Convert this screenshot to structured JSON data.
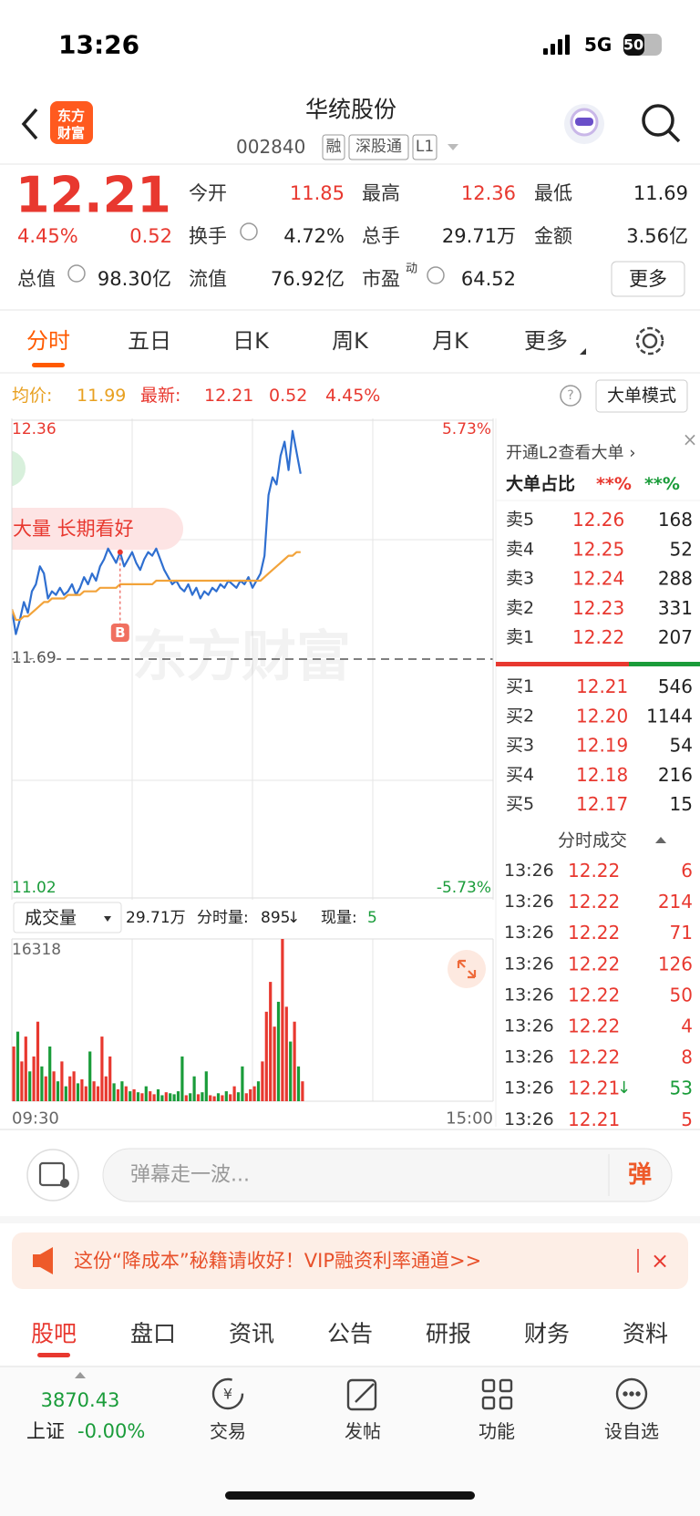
{
  "status": {
    "time": "13:26",
    "network": "5G",
    "battery": "50"
  },
  "header": {
    "logo": [
      "东方",
      "财富"
    ],
    "title": "华统股份",
    "code": "002840",
    "tags": [
      "融",
      "深股通",
      "L1"
    ]
  },
  "quote": {
    "price": "12.21",
    "change_pct": "4.45%",
    "change": "0.52",
    "stats": [
      [
        {
          "label": "今开",
          "value": "11.85",
          "color": "#e8382f"
        },
        {
          "label": "最高",
          "value": "12.36",
          "color": "#e8382f"
        },
        {
          "label": "最低",
          "value": "11.69",
          "color": "#222222"
        }
      ],
      [
        {
          "label": "换手",
          "value": "4.72%",
          "color": "#222222"
        },
        {
          "label": "总手",
          "value": "29.71万",
          "color": "#222222"
        },
        {
          "label": "金额",
          "value": "3.56亿",
          "color": "#222222"
        }
      ],
      [
        {
          "label": "总值",
          "value": "98.30亿",
          "color": "#222222"
        },
        {
          "label": "流值",
          "value": "76.92亿",
          "color": "#222222"
        },
        {
          "label": "市盈",
          "sup": "动",
          "value": "64.52",
          "color": "#222222"
        }
      ]
    ],
    "more": "更多"
  },
  "tabs": {
    "items": [
      "分时",
      "五日",
      "日K",
      "周K",
      "月K",
      "更多"
    ],
    "active": 0
  },
  "chart_info": {
    "avg_label": "均价:",
    "avg": "11.99",
    "latest_label": "最新:",
    "latest": "12.21",
    "change": "0.52",
    "change_pct": "4.45%",
    "mode": "大单模式"
  },
  "chart_data": [
    {
      "type": "line",
      "xlim": [
        0,
        120
      ],
      "ylim": [
        11.02,
        12.36
      ],
      "yticks": [
        11.02,
        12.36
      ],
      "y2lim": [
        -5.73,
        5.73
      ],
      "y2ticks": [
        {
          "value": -5.73,
          "label": "-5.73%"
        },
        {
          "value": 5.73,
          "label": "5.73%"
        }
      ],
      "reference": 11.69,
      "banner": "放大量 长期看好",
      "marker": {
        "label": "B",
        "x": 27
      },
      "watermark": "东方财富",
      "series": [
        {
          "color": "#2f6fd0",
          "values": [
            11.83,
            11.76,
            11.8,
            11.85,
            11.82,
            11.88,
            11.9,
            11.95,
            11.93,
            11.86,
            11.88,
            11.87,
            11.89,
            11.87,
            11.88,
            11.9,
            11.87,
            11.89,
            11.92,
            11.9,
            11.93,
            11.91,
            11.95,
            11.97,
            12.0,
            11.98,
            11.96,
            11.99,
            11.95,
            11.97,
            11.99,
            11.96,
            11.94,
            11.97,
            11.99,
            11.98,
            12.0,
            11.97,
            11.94,
            11.92,
            11.9,
            11.91,
            11.89,
            11.88,
            11.9,
            11.87,
            11.89,
            11.86,
            11.88,
            11.87,
            11.89,
            11.88,
            11.9,
            11.89,
            11.91,
            11.9,
            11.89,
            11.91,
            11.9,
            11.92,
            11.89,
            11.91,
            11.93,
            11.98,
            12.15,
            12.2,
            12.18,
            12.26,
            12.3,
            12.22,
            12.33,
            12.27,
            12.21
          ]
        },
        {
          "color": "#f2a33a",
          "values": [
            11.83,
            11.8,
            11.8,
            11.81,
            11.81,
            11.82,
            11.83,
            11.84,
            11.85,
            11.85,
            11.86,
            11.86,
            11.86,
            11.86,
            11.87,
            11.87,
            11.87,
            11.87,
            11.88,
            11.88,
            11.88,
            11.88,
            11.89,
            11.89,
            11.89,
            11.89,
            11.89,
            11.9,
            11.9,
            11.9,
            11.9,
            11.9,
            11.9,
            11.9,
            11.9,
            11.9,
            11.91,
            11.91,
            11.91,
            11.91,
            11.91,
            11.91,
            11.91,
            11.91,
            11.91,
            11.91,
            11.91,
            11.91,
            11.91,
            11.91,
            11.91,
            11.91,
            11.91,
            11.91,
            11.91,
            11.91,
            11.91,
            11.91,
            11.91,
            11.91,
            11.91,
            11.91,
            11.91,
            11.92,
            11.93,
            11.94,
            11.95,
            11.96,
            11.97,
            11.98,
            11.98,
            11.99,
            11.99
          ]
        }
      ]
    },
    {
      "type": "bar",
      "xlim": [
        0,
        120
      ],
      "ylim": [
        0,
        16318
      ],
      "yticks": [
        16318
      ],
      "xticks": [
        {
          "value": 0,
          "label": "09:30"
        },
        {
          "value": 120,
          "label": "15:00"
        }
      ],
      "label": "成交量",
      "total": "29.71万",
      "minute_label": "分时量:",
      "minute": "895",
      "arrow": "↓",
      "current_label": "现量:",
      "current": "5",
      "series": [
        {
          "color": "#e8382f",
          "values": [
            5500,
            null,
            4000,
            6500,
            null,
            4500,
            8000,
            null,
            2500,
            null,
            3000,
            null,
            4000,
            null,
            2500,
            3000,
            null,
            2200,
            1500,
            null,
            2000,
            1500,
            6500,
            2500,
            4500,
            null,
            1200,
            null,
            1500,
            null,
            1200,
            null,
            800,
            null,
            1000,
            700,
            null,
            null,
            900,
            null,
            null,
            null,
            null,
            600,
            null,
            null,
            700,
            null,
            null,
            600,
            500,
            null,
            600,
            null,
            700,
            1500,
            null,
            null,
            800,
            1200,
            1500,
            null,
            4000,
            9000,
            12000,
            7500,
            null,
            16318,
            9500,
            null,
            8000,
            null,
            2000
          ]
        },
        {
          "color": "#1a9c3a",
          "values": [
            null,
            7000,
            null,
            null,
            3000,
            null,
            null,
            3500,
            null,
            5500,
            null,
            2000,
            null,
            1500,
            null,
            null,
            1800,
            null,
            null,
            5000,
            null,
            null,
            null,
            null,
            null,
            1800,
            null,
            2000,
            null,
            1000,
            null,
            900,
            null,
            1500,
            null,
            null,
            1200,
            600,
            null,
            800,
            700,
            1000,
            4500,
            null,
            800,
            2500,
            null,
            900,
            3000,
            null,
            null,
            800,
            null,
            1000,
            null,
            null,
            900,
            3500,
            null,
            null,
            null,
            2000,
            null,
            null,
            null,
            null,
            10000,
            null,
            null,
            6000,
            null,
            3500,
            null
          ]
        }
      ]
    }
  ],
  "order_book": {
    "l2": "开通L2查看大单 ›",
    "big_label": "大单占比",
    "big_buy": "**%",
    "big_sell": "**%",
    "asks": [
      {
        "label": "卖5",
        "price": "12.26",
        "volume": "168"
      },
      {
        "label": "卖4",
        "price": "12.25",
        "volume": "52"
      },
      {
        "label": "卖3",
        "price": "12.24",
        "volume": "288"
      },
      {
        "label": "卖2",
        "price": "12.23",
        "volume": "331"
      },
      {
        "label": "卖1",
        "price": "12.22",
        "volume": "207"
      }
    ],
    "bids": [
      {
        "label": "买1",
        "price": "12.21",
        "volume": "546"
      },
      {
        "label": "买2",
        "price": "12.20",
        "volume": "1144"
      },
      {
        "label": "买3",
        "price": "12.19",
        "volume": "54"
      },
      {
        "label": "买4",
        "price": "12.18",
        "volume": "216"
      },
      {
        "label": "买5",
        "price": "12.17",
        "volume": "15"
      }
    ],
    "trades_title": "分时成交",
    "trades": [
      {
        "time": "13:26",
        "price": "12.22",
        "volume": "6",
        "color": "#e8382f"
      },
      {
        "time": "13:26",
        "price": "12.22",
        "volume": "214",
        "color": "#e8382f"
      },
      {
        "time": "13:26",
        "price": "12.22",
        "volume": "71",
        "color": "#e8382f"
      },
      {
        "time": "13:26",
        "price": "12.22",
        "volume": "126",
        "color": "#e8382f"
      },
      {
        "time": "13:26",
        "price": "12.22",
        "volume": "50",
        "color": "#e8382f"
      },
      {
        "time": "13:26",
        "price": "12.22",
        "volume": "4",
        "color": "#e8382f"
      },
      {
        "time": "13:26",
        "price": "12.22",
        "volume": "8",
        "color": "#e8382f"
      },
      {
        "time": "13:26",
        "price": "12.21",
        "arrow": "↓",
        "volume": "53",
        "color": "#1a9c3a"
      },
      {
        "time": "13:26",
        "price": "12.21",
        "volume": "5",
        "color": "#e8382f"
      }
    ]
  },
  "comment": {
    "placeholder": "弹幕走一波...",
    "button": "弹"
  },
  "promo": "这份“降成本”秘籍请收好！VIP融资利率通道>>",
  "sections": {
    "items": [
      "股吧",
      "盘口",
      "资讯",
      "公告",
      "研报",
      "财务",
      "资料"
    ],
    "active": 0
  },
  "index": {
    "value": "3870.43",
    "name": "上证",
    "change": "-0.00%"
  },
  "nav": [
    "交易",
    "发帖",
    "功能",
    "设自选"
  ]
}
